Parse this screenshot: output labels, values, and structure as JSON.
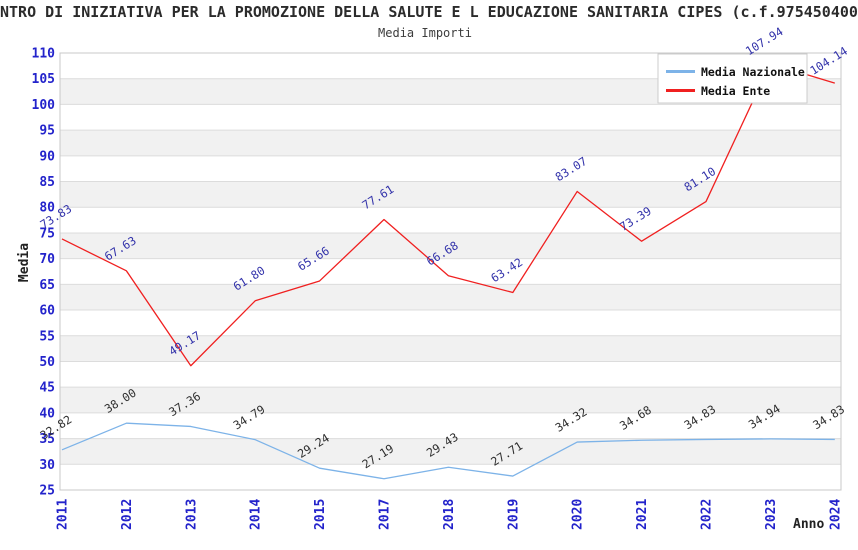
{
  "title": "NTRO DI INIZIATIVA PER LA PROMOZIONE DELLA SALUTE E L EDUCAZIONE SANITARIA CIPES (c.f.975450400",
  "subtitle": "Media Importi",
  "chart_data": {
    "type": "line",
    "categories": [
      "2011",
      "2012",
      "2013",
      "2014",
      "2015",
      "2017",
      "2018",
      "2019",
      "2020",
      "2021",
      "2022",
      "2023",
      "2024"
    ],
    "series": [
      {
        "name": "Media Nazionale",
        "color": "#7db3e8",
        "label_color": "#2e2e2e",
        "values": [
          32.82,
          38.0,
          37.36,
          34.79,
          29.24,
          27.19,
          29.43,
          27.71,
          34.32,
          34.68,
          34.83,
          34.94,
          34.83
        ]
      },
      {
        "name": "Media Ente",
        "color": "#f02020",
        "label_color": "#3232aa",
        "values": [
          73.83,
          67.63,
          49.17,
          61.8,
          65.66,
          77.61,
          66.68,
          63.42,
          83.07,
          73.39,
          81.1,
          107.94,
          104.14
        ]
      }
    ],
    "xlabel": "Anno",
    "ylabel": "Media",
    "ylim": [
      25,
      110
    ],
    "ytick_step": 5,
    "xtick_rotation": -90,
    "data_label_decimals": 2,
    "legend_position": "top-right",
    "grid": "horizontal-bands"
  },
  "colors": {
    "tick_labels": "#2323cb",
    "grid_line": "#dcdcdc",
    "band_fill": "#f1f1f1",
    "plot_border": "#c8c8c8",
    "legend_border": "#cccccc",
    "title_text": "#2b2b2b"
  }
}
